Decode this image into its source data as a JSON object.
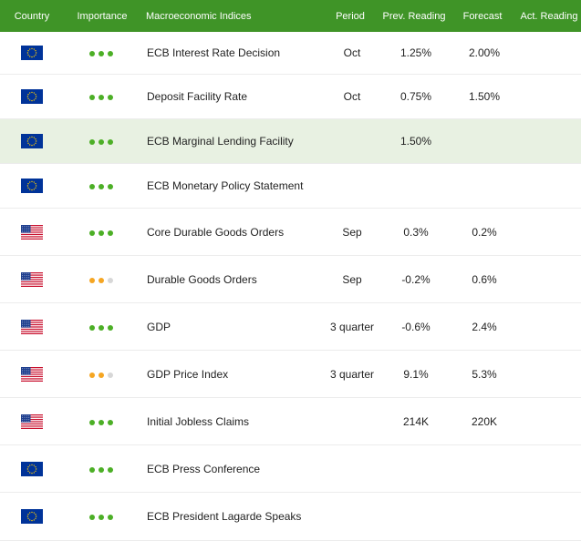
{
  "header": {
    "country": "Country",
    "importance": "Importance",
    "indices": "Macroeconomic Indices",
    "period": "Period",
    "prev": "Prev. Reading",
    "forecast": "Forecast",
    "actual": "Act. Reading"
  },
  "colors": {
    "header_bg": "#3f9427",
    "highlight_bg": "#e8f1e2",
    "dot_green": "#4caf26",
    "dot_orange": "#f5a623",
    "dot_grey": "#d7d7d7",
    "eu_blue": "#003399",
    "eu_star": "#ffcc00",
    "us_red": "#c8102e",
    "us_blue": "#1f3f8f"
  },
  "rows": [
    {
      "flag": "eu-flag-icon",
      "importance": "high",
      "name": "ECB Interest Rate Decision",
      "period": "Oct",
      "prev": "1.25%",
      "forecast": "2.00%",
      "actual": "",
      "highlight": false
    },
    {
      "flag": "eu-flag-icon",
      "importance": "high",
      "name": "Deposit Facility Rate",
      "period": "Oct",
      "prev": "0.75%",
      "forecast": "1.50%",
      "actual": "",
      "highlight": false
    },
    {
      "flag": "eu-flag-icon",
      "importance": "high",
      "name": "ECB Marginal Lending Facility",
      "period": "",
      "prev": "1.50%",
      "forecast": "",
      "actual": "",
      "highlight": true
    },
    {
      "flag": "eu-flag-icon",
      "importance": "high",
      "name": "ECB Monetary Policy Statement",
      "period": "",
      "prev": "",
      "forecast": "",
      "actual": "",
      "highlight": false
    },
    {
      "flag": "us-flag-icon",
      "importance": "high",
      "name": "Core Durable Goods Orders",
      "period": "Sep",
      "prev": "0.3%",
      "forecast": "0.2%",
      "actual": "",
      "highlight": false
    },
    {
      "flag": "us-flag-icon",
      "importance": "medium",
      "name": "Durable Goods Orders",
      "period": "Sep",
      "prev": "-0.2%",
      "forecast": "0.6%",
      "actual": "",
      "highlight": false
    },
    {
      "flag": "us-flag-icon",
      "importance": "high",
      "name": "GDP",
      "period": "3 quarter",
      "prev": "-0.6%",
      "forecast": "2.4%",
      "actual": "",
      "highlight": false
    },
    {
      "flag": "us-flag-icon",
      "importance": "medium",
      "name": "GDP Price Index",
      "period": "3 quarter",
      "prev": "9.1%",
      "forecast": "5.3%",
      "actual": "",
      "highlight": false
    },
    {
      "flag": "us-flag-icon",
      "importance": "high",
      "name": "Initial Jobless Claims",
      "period": "",
      "prev": "214K",
      "forecast": "220K",
      "actual": "",
      "highlight": false
    },
    {
      "flag": "eu-flag-icon",
      "importance": "high",
      "name": "ECB Press Conference",
      "period": "",
      "prev": "",
      "forecast": "",
      "actual": "",
      "highlight": false
    },
    {
      "flag": "eu-flag-icon",
      "importance": "high",
      "name": "ECB President Lagarde Speaks",
      "period": "",
      "prev": "",
      "forecast": "",
      "actual": "",
      "highlight": false
    }
  ]
}
